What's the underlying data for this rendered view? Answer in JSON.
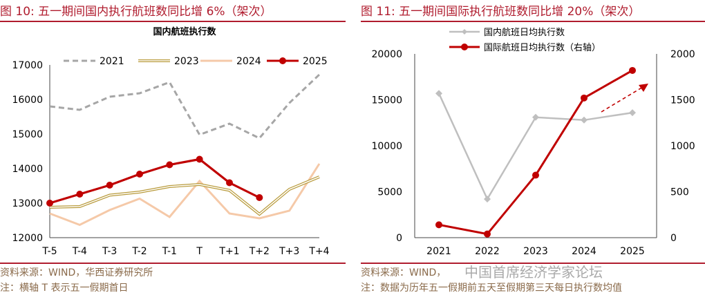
{
  "left": {
    "fig_title": "图 10:  五一期间国内执行航班数同比增 6%（架次）",
    "source": "资料来源：WIND，华西证券研究所",
    "note": "注：横轴 T 表示五一假期首日"
  },
  "right": {
    "fig_title": "图 11:  五一期间国际执行航班数同比增 20%（架次）",
    "source": "资料来源：WIND，",
    "note": "注：数据为历年五一假期前五天至假期第三天每日执行数均值"
  },
  "watermark": "中国首席经济学家论坛",
  "colors": {
    "accent": "#b01c2e",
    "c2021": "#a6a6a6",
    "c2023": "#b89a3a",
    "c2024": "#f5c9a8",
    "c2025": "#c00000",
    "gray": "#bfbfbf"
  },
  "chart_data": [
    {
      "type": "line",
      "title": "国内航班执行数",
      "categories": [
        "T-5",
        "T-4",
        "T-3",
        "T-2",
        "T-1",
        "T",
        "T+1",
        "T+2",
        "T+3",
        "T+4"
      ],
      "ylim": [
        12000,
        17000
      ],
      "yticks": [
        12000,
        13000,
        14000,
        15000,
        16000,
        17000
      ],
      "legend": "top",
      "series": [
        {
          "name": "2021",
          "style": "dashed",
          "values": [
            15800,
            15700,
            16080,
            16180,
            16500,
            14980,
            15300,
            14880,
            15900,
            16720
          ]
        },
        {
          "name": "2023",
          "style": "double",
          "values": [
            12880,
            12900,
            13230,
            13320,
            13480,
            13540,
            13370,
            12680,
            13400,
            13760
          ]
        },
        {
          "name": "2024",
          "style": "solid",
          "values": [
            12700,
            12370,
            12800,
            13130,
            12600,
            13640,
            12700,
            12560,
            12780,
            14140
          ]
        },
        {
          "name": "2025",
          "style": "marker",
          "values": [
            13000,
            13260,
            13520,
            13840,
            14110,
            14270,
            13590,
            13160,
            null,
            null
          ]
        }
      ]
    },
    {
      "type": "line",
      "categories": [
        "2021",
        "2022",
        "2023",
        "2024",
        "2025"
      ],
      "ylim": [
        0,
        20000
      ],
      "yticks": [
        0,
        5000,
        10000,
        15000,
        20000
      ],
      "y2lim": [
        0,
        2000
      ],
      "y2ticks": [
        0,
        500,
        1000,
        1500,
        2000
      ],
      "legend": "top",
      "series": [
        {
          "name": "国内航班日均执行数",
          "axis": "left",
          "values": [
            15700,
            4200,
            13100,
            12800,
            13600
          ]
        },
        {
          "name": "国际航班日均执行数（右轴）",
          "axis": "right",
          "values": [
            140,
            40,
            680,
            1520,
            1820
          ]
        }
      ]
    }
  ]
}
